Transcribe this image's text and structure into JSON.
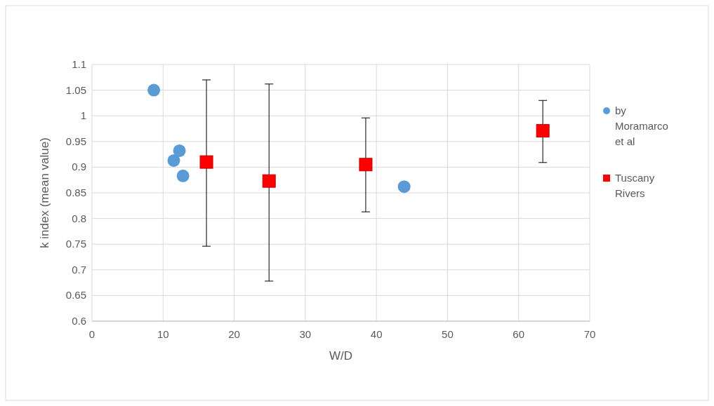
{
  "chart_data": {
    "type": "scatter",
    "xlabel": "W/D",
    "ylabel": "k index (mean value)",
    "xlim": [
      0,
      70
    ],
    "xticks": [
      0,
      10,
      20,
      30,
      40,
      50,
      60,
      70
    ],
    "ylim": [
      0.6,
      1.1
    ],
    "yticks": [
      0.6,
      0.65,
      0.7,
      0.75,
      0.8,
      0.85,
      0.9,
      0.95,
      1,
      1.05,
      1.1
    ],
    "grid": true,
    "legend": "right",
    "series": [
      {
        "name": "by Moramarco et al",
        "color": "#5b9bd5",
        "marker": "circle",
        "x": [
          8.7,
          11.5,
          12.3,
          12.8,
          43.9
        ],
        "values": [
          1.05,
          0.913,
          0.932,
          0.883,
          0.862
        ]
      },
      {
        "name": "Tuscany Rivers",
        "color": "#ff0000",
        "marker": "square",
        "x": [
          16.1,
          24.9,
          38.5,
          63.4
        ],
        "values": [
          0.91,
          0.873,
          0.905,
          0.971
        ],
        "errors": [
          [
            0.746,
            1.07
          ],
          [
            0.678,
            1.062
          ],
          [
            0.813,
            0.996
          ],
          [
            0.909,
            1.03
          ]
        ]
      }
    ]
  }
}
